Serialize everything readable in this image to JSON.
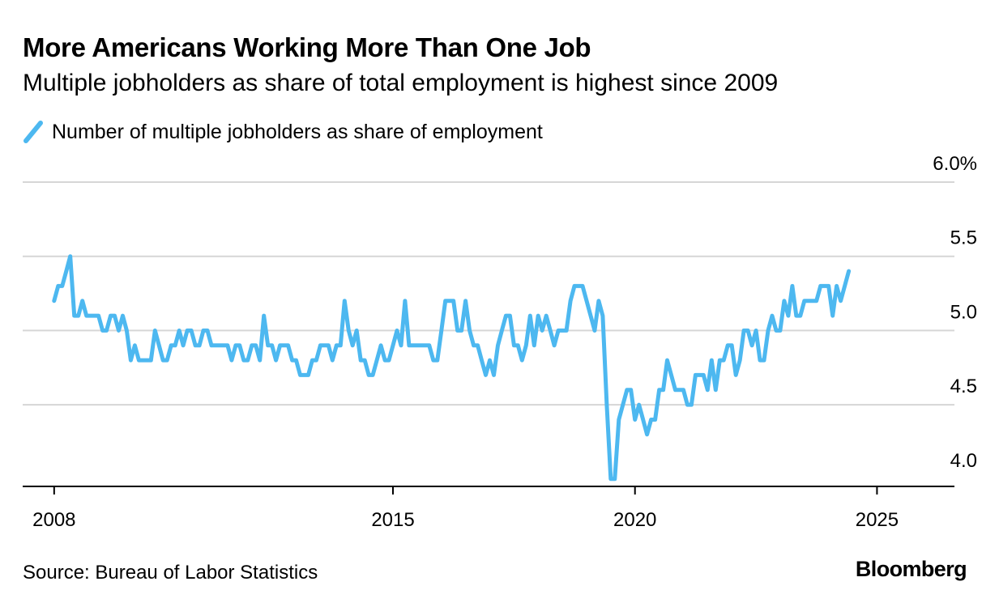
{
  "colors": {
    "series": "#4db8f0",
    "grid": "#d6d6d6",
    "axis": "#000000",
    "text": "#000000"
  },
  "legend": {
    "icon": "diagonal-line-swatch",
    "label": "Number of multiple jobholders as share of employment"
  },
  "footer": {
    "source": "Source: Bureau of Labor Statistics",
    "brand": "Bloomberg"
  },
  "chart_data": {
    "type": "line",
    "title": "More Americans Working More Than One Job",
    "subtitle": "Multiple jobholders as share of total employment is highest since 2009",
    "xlabel": "",
    "ylabel": "",
    "unit": "%",
    "xlim": [
      2007.35,
      2026.6
    ],
    "ylim": [
      3.95,
      6.0
    ],
    "grid": true,
    "legend_position": "top-left",
    "x_ticks": [
      {
        "value": 2008,
        "label": "2008"
      },
      {
        "value": 2015,
        "label": "2015"
      },
      {
        "value": 2020,
        "label": "2020"
      },
      {
        "value": 2025,
        "label": "2025"
      }
    ],
    "y_ticks": [
      {
        "value": 6.0,
        "label": "6.0%"
      },
      {
        "value": 5.5,
        "label": "5.5"
      },
      {
        "value": 5.0,
        "label": "5.0"
      },
      {
        "value": 4.5,
        "label": "4.5"
      },
      {
        "value": 4.0,
        "label": "4.0"
      }
    ],
    "series": [
      {
        "name": "Number of multiple jobholders as share of employment",
        "start": "2008-01",
        "frequency": "monthly",
        "values": [
          5.2,
          5.3,
          5.3,
          5.4,
          5.5,
          5.1,
          5.1,
          5.2,
          5.1,
          5.1,
          5.1,
          5.1,
          5.0,
          5.0,
          5.1,
          5.1,
          5.0,
          5.1,
          5.0,
          4.8,
          4.9,
          4.8,
          4.8,
          4.8,
          4.8,
          5.0,
          4.9,
          4.8,
          4.8,
          4.9,
          4.9,
          5.0,
          4.9,
          5.0,
          5.0,
          4.9,
          4.9,
          5.0,
          5.0,
          4.9,
          4.9,
          4.9,
          4.9,
          4.9,
          4.8,
          4.9,
          4.9,
          4.8,
          4.8,
          4.9,
          4.9,
          4.8,
          5.1,
          4.9,
          4.9,
          4.8,
          4.9,
          4.9,
          4.9,
          4.8,
          4.8,
          4.7,
          4.7,
          4.7,
          4.8,
          4.8,
          4.9,
          4.9,
          4.9,
          4.8,
          4.9,
          4.9,
          5.2,
          5.0,
          4.9,
          5.0,
          4.8,
          4.8,
          4.7,
          4.7,
          4.8,
          4.9,
          4.8,
          4.8,
          4.9,
          5.0,
          4.9,
          5.2,
          4.9,
          4.9,
          4.9,
          4.9,
          4.9,
          4.9,
          4.8,
          4.8,
          5.0,
          5.2,
          5.2,
          5.2,
          5.0,
          5.0,
          5.2,
          5.0,
          4.9,
          4.9,
          4.8,
          4.7,
          4.8,
          4.7,
          4.9,
          5.0,
          5.1,
          5.1,
          4.9,
          4.9,
          4.8,
          4.9,
          5.1,
          4.9,
          5.1,
          5.0,
          5.1,
          5.0,
          4.9,
          5.0,
          5.0,
          5.0,
          5.2,
          5.3,
          5.3,
          5.3,
          5.2,
          5.1,
          5.0,
          5.2,
          5.1,
          4.5,
          4.0,
          4.0,
          4.4,
          4.5,
          4.6,
          4.6,
          4.4,
          4.5,
          4.4,
          4.3,
          4.4,
          4.4,
          4.6,
          4.6,
          4.8,
          4.7,
          4.6,
          4.6,
          4.6,
          4.5,
          4.5,
          4.7,
          4.7,
          4.7,
          4.6,
          4.8,
          4.6,
          4.8,
          4.8,
          4.9,
          4.9,
          4.7,
          4.8,
          5.0,
          5.0,
          4.9,
          5.0,
          4.8,
          4.8,
          5.0,
          5.1,
          5.0,
          5.0,
          5.2,
          5.1,
          5.3,
          5.1,
          5.1,
          5.2,
          5.2,
          5.2,
          5.2,
          5.3,
          5.3,
          5.3,
          5.1,
          5.3,
          5.2,
          5.3,
          5.4
        ]
      }
    ]
  }
}
